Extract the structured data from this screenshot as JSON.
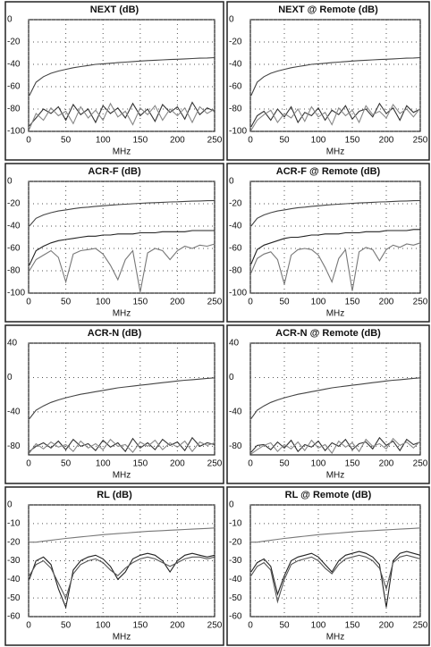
{
  "chart_data": [
    {
      "type": "line",
      "title": "NEXT (dB)",
      "x_label": "MHz",
      "x": [
        1,
        10,
        20,
        30,
        40,
        50,
        60,
        70,
        80,
        90,
        100,
        110,
        120,
        130,
        140,
        150,
        160,
        170,
        180,
        190,
        200,
        210,
        220,
        230,
        240,
        250
      ],
      "xlim": [
        0,
        250
      ],
      "xticks": [
        0,
        50,
        100,
        150,
        200,
        250
      ],
      "ylim": [
        -100,
        0
      ],
      "yticks": [
        0,
        -20,
        -40,
        -60,
        -80,
        -100
      ],
      "grid": true,
      "series": [
        {
          "color": "#444444",
          "values": [
            -68,
            -56,
            -51,
            -48,
            -46,
            -44.5,
            -43,
            -42,
            -41,
            -40,
            -39.5,
            -39,
            -38.5,
            -38,
            -37.5,
            -37,
            -36.6,
            -36.3,
            -36,
            -35.7,
            -35.4,
            -35.1,
            -34.8,
            -34.5,
            -34.3,
            -34
          ]
        },
        {
          "color": "#333333",
          "values": [
            -95,
            -88,
            -80,
            -84,
            -78,
            -90,
            -76,
            -85,
            -80,
            -92,
            -77,
            -84,
            -79,
            -88,
            -75,
            -86,
            -80,
            -91,
            -76,
            -83,
            -78,
            -89,
            -74,
            -85,
            -79,
            -82
          ]
        },
        {
          "color": "#888888",
          "values": [
            -98,
            -84,
            -90,
            -79,
            -86,
            -82,
            -93,
            -78,
            -88,
            -81,
            -90,
            -75,
            -87,
            -82,
            -94,
            -79,
            -85,
            -77,
            -90,
            -80,
            -86,
            -79,
            -92,
            -78,
            -84,
            -80
          ]
        }
      ]
    },
    {
      "type": "line",
      "title": "NEXT @ Remote (dB)",
      "x_label": "MHz",
      "x": [
        1,
        10,
        20,
        30,
        40,
        50,
        60,
        70,
        80,
        90,
        100,
        110,
        120,
        130,
        140,
        150,
        160,
        170,
        180,
        190,
        200,
        210,
        220,
        230,
        240,
        250
      ],
      "xlim": [
        0,
        250
      ],
      "xticks": [
        0,
        50,
        100,
        150,
        200,
        250
      ],
      "ylim": [
        -100,
        0
      ],
      "yticks": [
        0,
        -20,
        -40,
        -60,
        -80,
        -100
      ],
      "grid": true,
      "series": [
        {
          "color": "#444444",
          "values": [
            -68,
            -56,
            -51,
            -48,
            -46,
            -44.5,
            -43,
            -42,
            -41,
            -40,
            -39.5,
            -39,
            -38.5,
            -38,
            -37.5,
            -37,
            -36.6,
            -36.3,
            -36,
            -35.7,
            -35.4,
            -35.1,
            -34.8,
            -34.5,
            -34.3,
            -34
          ]
        },
        {
          "color": "#333333",
          "values": [
            -96,
            -86,
            -82,
            -90,
            -80,
            -87,
            -78,
            -92,
            -83,
            -86,
            -79,
            -90,
            -81,
            -85,
            -77,
            -89,
            -82,
            -80,
            -87,
            -75,
            -84,
            -79,
            -90,
            -77,
            -83,
            -80
          ]
        },
        {
          "color": "#888888",
          "values": [
            -99,
            -90,
            -85,
            -81,
            -92,
            -84,
            -88,
            -80,
            -91,
            -78,
            -87,
            -83,
            -94,
            -79,
            -86,
            -81,
            -92,
            -77,
            -85,
            -82,
            -88,
            -76,
            -84,
            -80,
            -87,
            -79
          ]
        }
      ]
    },
    {
      "type": "line",
      "title": "ACR-F (dB)",
      "x_label": "MHz",
      "x": [
        1,
        10,
        20,
        30,
        40,
        50,
        60,
        70,
        80,
        90,
        100,
        110,
        120,
        130,
        140,
        150,
        160,
        170,
        180,
        190,
        200,
        210,
        220,
        230,
        240,
        250
      ],
      "xlim": [
        0,
        250
      ],
      "xticks": [
        0,
        50,
        100,
        150,
        200,
        250
      ],
      "ylim": [
        -100,
        0
      ],
      "yticks": [
        0,
        -20,
        -40,
        -60,
        -80,
        -100
      ],
      "grid": true,
      "series": [
        {
          "color": "#444444",
          "values": [
            -40,
            -33,
            -30,
            -28,
            -26.5,
            -25.5,
            -24.5,
            -23.5,
            -23,
            -22.3,
            -21.8,
            -21.3,
            -20.8,
            -20.4,
            -20,
            -19.6,
            -19.3,
            -19,
            -18.7,
            -18.4,
            -18.2,
            -17.9,
            -17.7,
            -17.5,
            -17.3,
            -17.1
          ]
        },
        {
          "color": "#222222",
          "values": [
            -75,
            -62,
            -58,
            -55,
            -53,
            -52,
            -51,
            -50,
            -49,
            -49,
            -48,
            -48,
            -47,
            -47,
            -47,
            -46,
            -46,
            -46,
            -45,
            -45,
            -45,
            -45,
            -44,
            -44,
            -44,
            -44
          ]
        },
        {
          "color": "#777777",
          "values": [
            -80,
            -70,
            -66,
            -62,
            -68,
            -90,
            -65,
            -62,
            -61,
            -60,
            -65,
            -75,
            -88,
            -70,
            -62,
            -99,
            -64,
            -60,
            -62,
            -70,
            -62,
            -58,
            -60,
            -57,
            -58,
            -56
          ]
        }
      ]
    },
    {
      "type": "line",
      "title": "ACR-F @ Remote (dB)",
      "x_label": "MHz",
      "x": [
        1,
        10,
        20,
        30,
        40,
        50,
        60,
        70,
        80,
        90,
        100,
        110,
        120,
        130,
        140,
        150,
        160,
        170,
        180,
        190,
        200,
        210,
        220,
        230,
        240,
        250
      ],
      "xlim": [
        0,
        250
      ],
      "xticks": [
        0,
        50,
        100,
        150,
        200,
        250
      ],
      "ylim": [
        -100,
        0
      ],
      "yticks": [
        0,
        -20,
        -40,
        -60,
        -80,
        -100
      ],
      "grid": true,
      "series": [
        {
          "color": "#444444",
          "values": [
            -40,
            -33,
            -30,
            -28,
            -26.5,
            -25.5,
            -24.5,
            -23.5,
            -23,
            -22.3,
            -21.8,
            -21.3,
            -20.8,
            -20.4,
            -20,
            -19.6,
            -19.3,
            -19,
            -18.7,
            -18.4,
            -18.2,
            -17.9,
            -17.7,
            -17.5,
            -17.3,
            -17.1
          ]
        },
        {
          "color": "#222222",
          "values": [
            -74,
            -61,
            -57,
            -55,
            -53,
            -51,
            -50,
            -50,
            -49,
            -48,
            -48,
            -47,
            -47,
            -47,
            -46,
            -46,
            -46,
            -45,
            -45,
            -45,
            -44,
            -44,
            -44,
            -44,
            -43,
            -43
          ]
        },
        {
          "color": "#777777",
          "values": [
            -82,
            -69,
            -65,
            -63,
            -70,
            -92,
            -66,
            -61,
            -60,
            -61,
            -66,
            -77,
            -90,
            -69,
            -61,
            -98,
            -63,
            -59,
            -61,
            -71,
            -61,
            -57,
            -59,
            -56,
            -57,
            -55
          ]
        }
      ]
    },
    {
      "type": "line",
      "title": "ACR-N (dB)",
      "x_label": "MHz",
      "x": [
        1,
        10,
        20,
        30,
        40,
        50,
        60,
        70,
        80,
        90,
        100,
        110,
        120,
        130,
        140,
        150,
        160,
        170,
        180,
        190,
        200,
        210,
        220,
        230,
        240,
        250
      ],
      "xlim": [
        0,
        250
      ],
      "xticks": [
        0,
        50,
        100,
        150,
        200,
        250
      ],
      "ylim": [
        -90,
        40
      ],
      "yticks": [
        40,
        0,
        -40,
        -80
      ],
      "grid": true,
      "series": [
        {
          "color": "#444444",
          "values": [
            -48,
            -38,
            -33,
            -29,
            -26,
            -23.5,
            -21.5,
            -19.5,
            -18,
            -16.5,
            -15,
            -13.5,
            -12,
            -11,
            -10,
            -9,
            -8,
            -7,
            -6,
            -5,
            -4,
            -3.2,
            -2.5,
            -1.8,
            -1,
            -0.3
          ]
        },
        {
          "color": "#333333",
          "values": [
            -86,
            -80,
            -76,
            -82,
            -74,
            -84,
            -72,
            -80,
            -77,
            -85,
            -73,
            -81,
            -76,
            -86,
            -71,
            -82,
            -76,
            -84,
            -72,
            -79,
            -75,
            -85,
            -70,
            -80,
            -76,
            -78
          ]
        },
        {
          "color": "#888888",
          "values": [
            -88,
            -77,
            -83,
            -75,
            -81,
            -78,
            -86,
            -74,
            -82,
            -77,
            -84,
            -72,
            -80,
            -78,
            -87,
            -75,
            -80,
            -73,
            -84,
            -76,
            -81,
            -74,
            -86,
            -75,
            -79,
            -76
          ]
        }
      ]
    },
    {
      "type": "line",
      "title": "ACR-N @ Remote (dB)",
      "x_label": "MHz",
      "x": [
        1,
        10,
        20,
        30,
        40,
        50,
        60,
        70,
        80,
        90,
        100,
        110,
        120,
        130,
        140,
        150,
        160,
        170,
        180,
        190,
        200,
        210,
        220,
        230,
        240,
        250
      ],
      "xlim": [
        0,
        250
      ],
      "xticks": [
        0,
        50,
        100,
        150,
        200,
        250
      ],
      "ylim": [
        -90,
        40
      ],
      "yticks": [
        40,
        0,
        -40,
        -80
      ],
      "grid": true,
      "series": [
        {
          "color": "#444444",
          "values": [
            -48,
            -38,
            -33,
            -29,
            -26,
            -23.5,
            -21.5,
            -19.5,
            -18,
            -16.5,
            -15,
            -13.5,
            -12,
            -11,
            -10,
            -9,
            -8,
            -7,
            -6,
            -5,
            -4,
            -3.2,
            -2.5,
            -1.8,
            -1,
            -0.3
          ]
        },
        {
          "color": "#333333",
          "values": [
            -87,
            -79,
            -78,
            -84,
            -75,
            -82,
            -73,
            -86,
            -78,
            -81,
            -74,
            -85,
            -76,
            -80,
            -72,
            -84,
            -77,
            -75,
            -83,
            -70,
            -79,
            -74,
            -85,
            -72,
            -78,
            -75
          ]
        },
        {
          "color": "#888888",
          "values": [
            -89,
            -84,
            -79,
            -76,
            -86,
            -78,
            -83,
            -75,
            -85,
            -73,
            -82,
            -78,
            -88,
            -74,
            -81,
            -76,
            -86,
            -72,
            -80,
            -77,
            -83,
            -71,
            -79,
            -75,
            -82,
            -74
          ]
        }
      ]
    },
    {
      "type": "line",
      "title": "RL (dB)",
      "x_label": "MHz",
      "x": [
        1,
        10,
        20,
        30,
        40,
        50,
        60,
        70,
        80,
        90,
        100,
        110,
        120,
        130,
        140,
        150,
        160,
        170,
        180,
        190,
        200,
        210,
        220,
        230,
        240,
        250
      ],
      "xlim": [
        0,
        250
      ],
      "xticks": [
        0,
        50,
        100,
        150,
        200,
        250
      ],
      "ylim": [
        -60,
        0
      ],
      "yticks": [
        0,
        -10,
        -20,
        -30,
        -40,
        -50,
        -60
      ],
      "grid": true,
      "series": [
        {
          "color": "#777777",
          "values": [
            -20,
            -20,
            -19.5,
            -19,
            -18.5,
            -18,
            -17.6,
            -17.2,
            -16.8,
            -16.4,
            -16,
            -15.7,
            -15.4,
            -15.1,
            -14.8,
            -14.5,
            -14.2,
            -14,
            -13.8,
            -13.6,
            -13.4,
            -13.2,
            -13,
            -12.8,
            -12.6,
            -12.4
          ]
        },
        {
          "color": "#222222",
          "values": [
            -40,
            -30,
            -28,
            -32,
            -45,
            -55,
            -35,
            -30,
            -28,
            -27,
            -29,
            -33,
            -40,
            -36,
            -29,
            -27,
            -26,
            -27,
            -30,
            -36,
            -30,
            -27,
            -26,
            -27,
            -28,
            -27
          ]
        },
        {
          "color": "#555555",
          "values": [
            -38,
            -32,
            -30,
            -34,
            -42,
            -50,
            -37,
            -32,
            -30,
            -29,
            -31,
            -35,
            -38,
            -34,
            -31,
            -29,
            -28,
            -29,
            -31,
            -33,
            -31,
            -29,
            -28,
            -28,
            -29,
            -28
          ]
        }
      ]
    },
    {
      "type": "line",
      "title": "RL @ Remote (dB)",
      "x_label": "MHz",
      "x": [
        1,
        10,
        20,
        30,
        40,
        50,
        60,
        70,
        80,
        90,
        100,
        110,
        120,
        130,
        140,
        150,
        160,
        170,
        180,
        190,
        200,
        210,
        220,
        230,
        240,
        250
      ],
      "xlim": [
        0,
        250
      ],
      "xticks": [
        0,
        50,
        100,
        150,
        200,
        250
      ],
      "ylim": [
        -60,
        0
      ],
      "yticks": [
        0,
        -10,
        -20,
        -30,
        -40,
        -50,
        -60
      ],
      "grid": true,
      "series": [
        {
          "color": "#777777",
          "values": [
            -20,
            -20,
            -19.5,
            -19,
            -18.5,
            -18,
            -17.6,
            -17.2,
            -16.8,
            -16.4,
            -16,
            -15.7,
            -15.4,
            -15.1,
            -14.8,
            -14.5,
            -14.2,
            -14,
            -13.8,
            -13.6,
            -13.4,
            -13.2,
            -13,
            -12.8,
            -12.6,
            -12.4
          ]
        },
        {
          "color": "#222222",
          "values": [
            -36,
            -31,
            -29,
            -33,
            -48,
            -38,
            -30,
            -28,
            -27,
            -26,
            -28,
            -32,
            -36,
            -30,
            -27,
            -26,
            -25,
            -26,
            -28,
            -32,
            -55,
            -30,
            -26,
            -25,
            -26,
            -27
          ]
        },
        {
          "color": "#555555",
          "values": [
            -38,
            -33,
            -31,
            -35,
            -52,
            -40,
            -32,
            -30,
            -29,
            -28,
            -30,
            -34,
            -37,
            -32,
            -29,
            -28,
            -27,
            -28,
            -30,
            -34,
            -45,
            -31,
            -28,
            -27,
            -28,
            -29
          ]
        }
      ]
    }
  ]
}
